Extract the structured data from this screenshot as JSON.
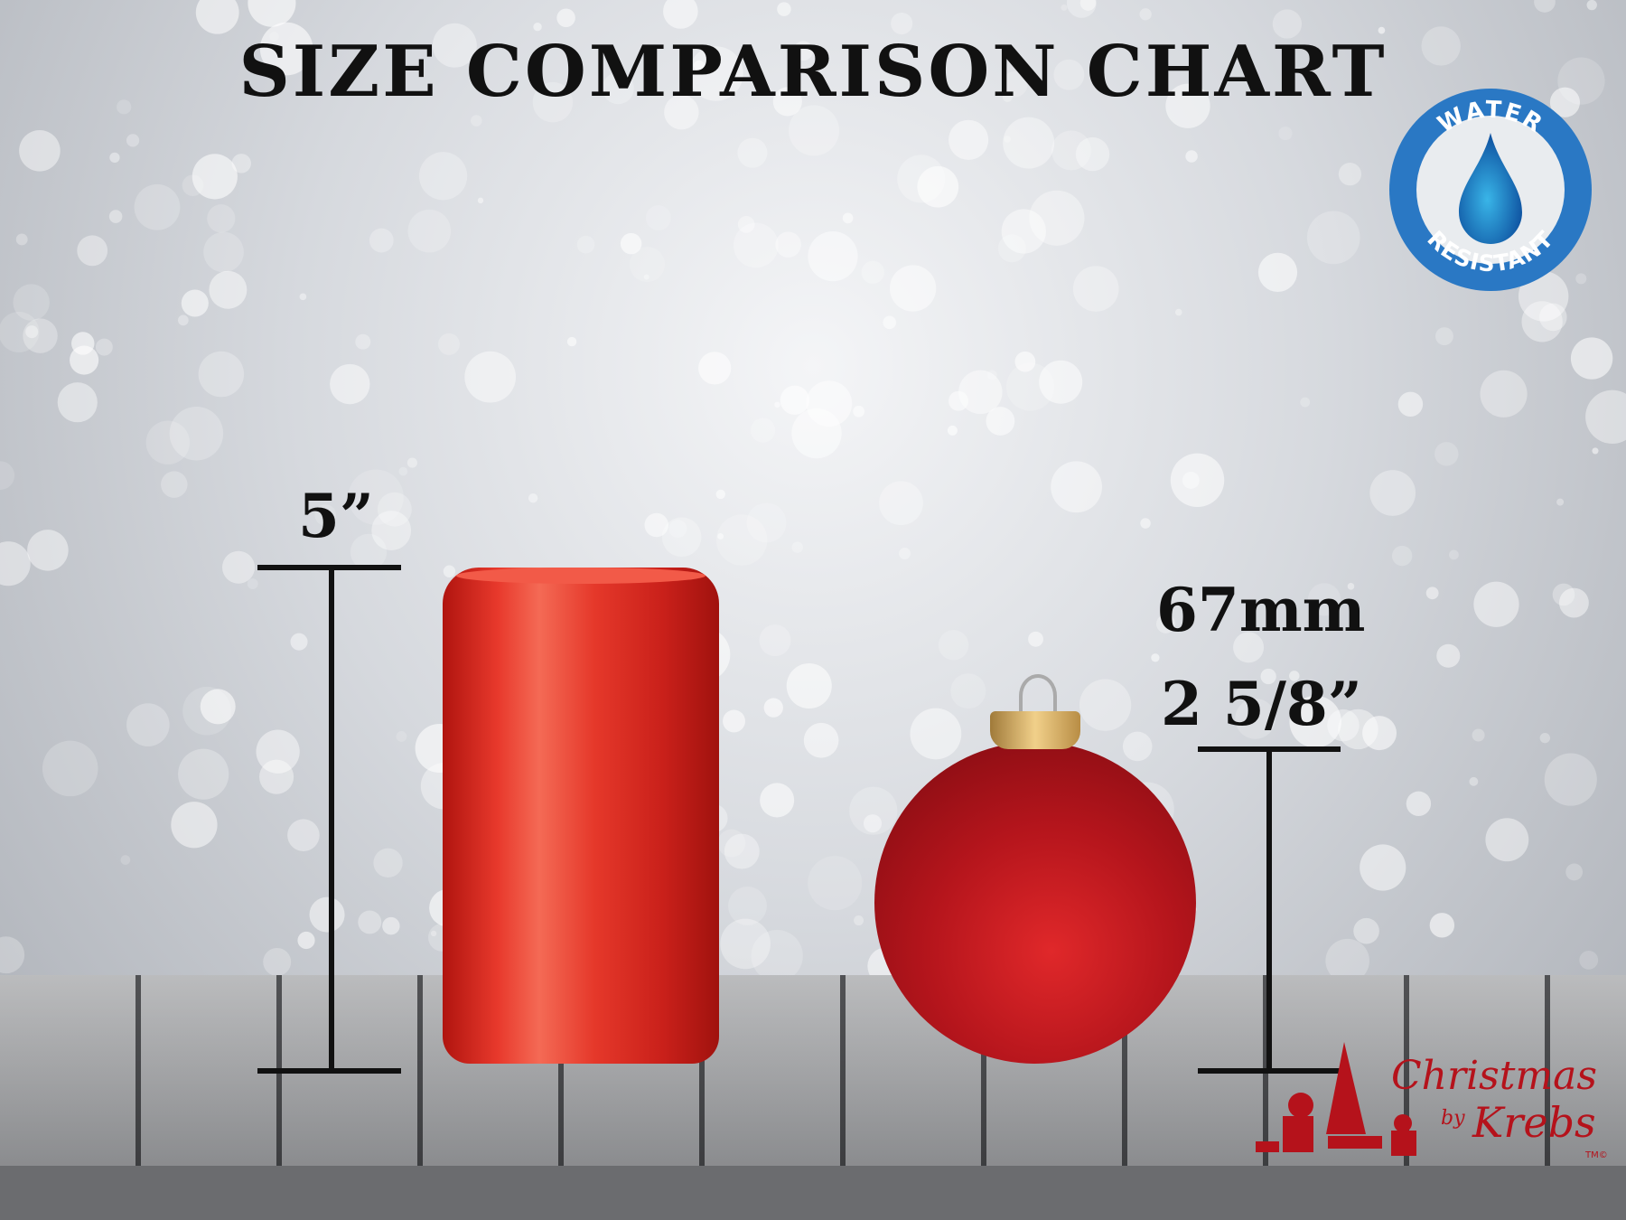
{
  "title": "SIZE COMPARISON CHART",
  "badge": {
    "top_text": "WATER",
    "bottom_text": "RESISTANT",
    "icon": "water-drop-icon",
    "color": "#2a78c4"
  },
  "can_dimension": {
    "height": "5”"
  },
  "ornament_dimension": {
    "metric": "67mm",
    "imperial": "2 5/8”"
  },
  "logo": {
    "line1": "Christmas",
    "line2": "by",
    "line3": "Krebs",
    "mark": "TM©",
    "color": "#b5121b"
  }
}
